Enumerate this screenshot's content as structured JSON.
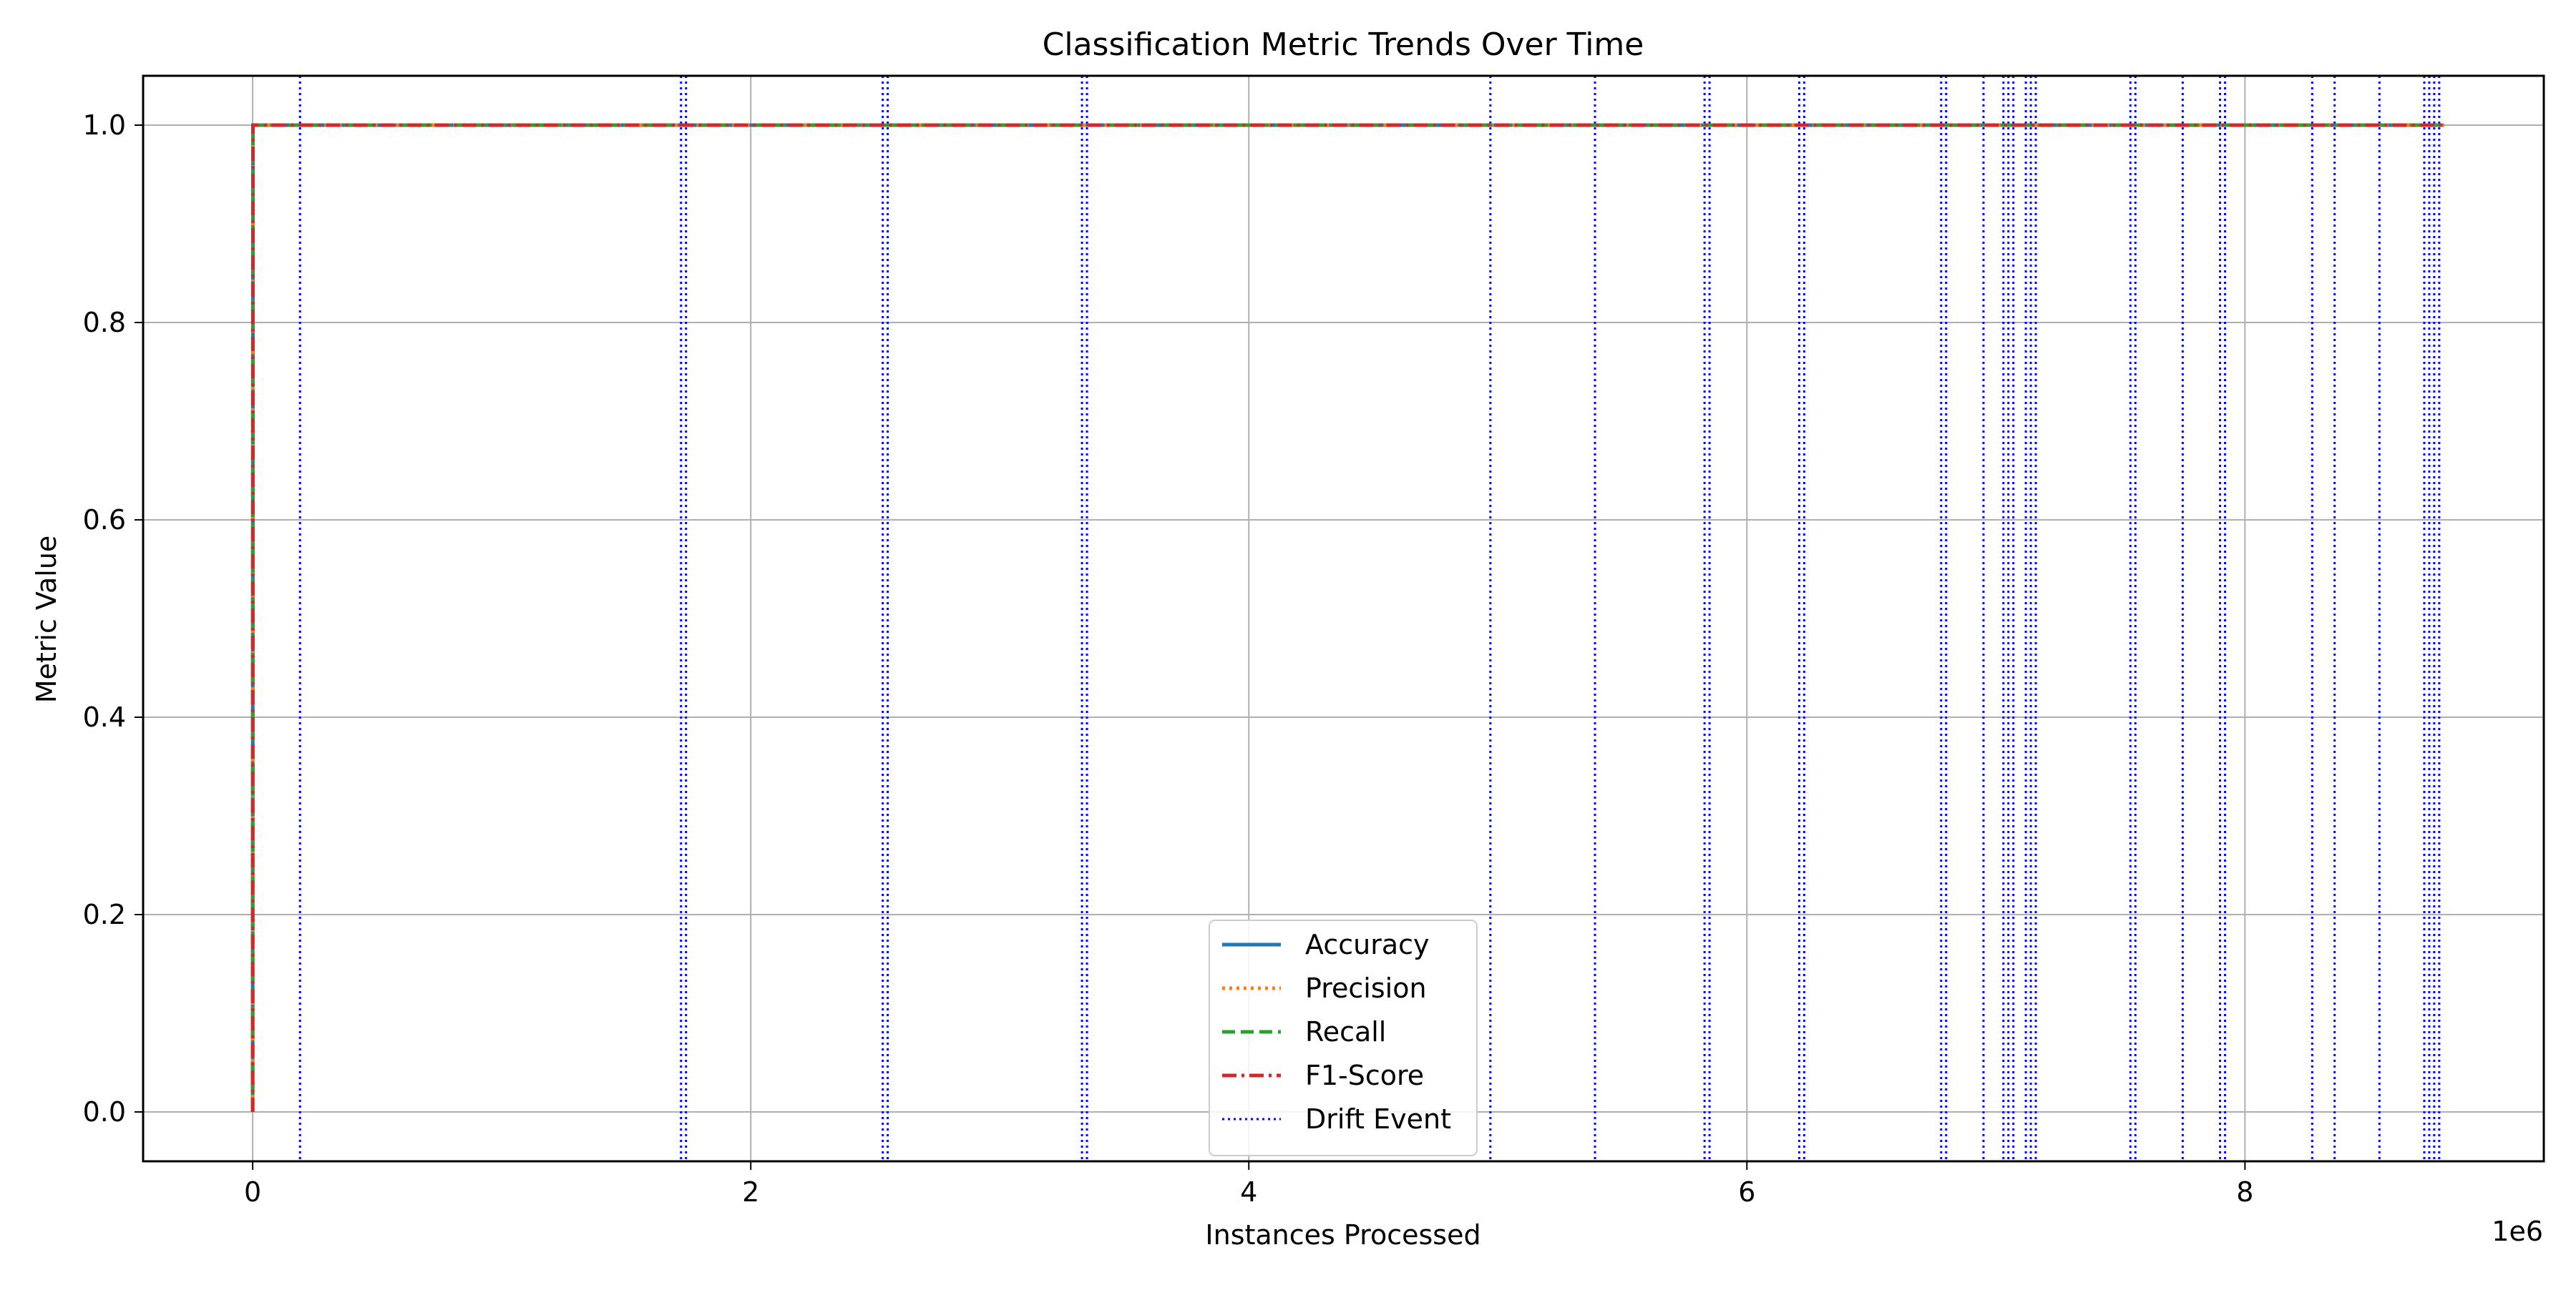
{
  "chart_data": {
    "type": "line",
    "title": "Classification Metric Trends Over Time",
    "xlabel": "Instances Processed",
    "ylabel": "Metric Value",
    "x_offset_label": "1e6",
    "x_scale": 1000000,
    "xlim": [
      -440000,
      9200000
    ],
    "ylim": [
      -0.05,
      1.05
    ],
    "xticks": [
      0,
      2000000,
      4000000,
      6000000,
      8000000
    ],
    "xtick_labels": [
      "0",
      "2",
      "4",
      "6",
      "8"
    ],
    "yticks": [
      0.0,
      0.2,
      0.4,
      0.6,
      0.8,
      1.0
    ],
    "ytick_labels": [
      "0.0",
      "0.2",
      "0.4",
      "0.6",
      "0.8",
      "1.0"
    ],
    "grid": true,
    "legend_position": "lower center",
    "series": [
      {
        "name": "Accuracy",
        "color": "#1f77b4",
        "style": "solid",
        "x": [
          0,
          1000,
          8800000
        ],
        "y": [
          0.0,
          1.0,
          1.0
        ]
      },
      {
        "name": "Precision",
        "color": "#ff7f0e",
        "style": "dotted",
        "x": [
          0,
          1000,
          8800000
        ],
        "y": [
          0.0,
          1.0,
          1.0
        ]
      },
      {
        "name": "Recall",
        "color": "#2ca02c",
        "style": "dashed",
        "x": [
          0,
          1000,
          8800000
        ],
        "y": [
          0.0,
          1.0,
          1.0
        ]
      },
      {
        "name": "F1-Score",
        "color": "#d62728",
        "style": "dashdot",
        "x": [
          0,
          1000,
          8800000
        ],
        "y": [
          0.0,
          1.0,
          1.0
        ]
      }
    ],
    "drift_events": {
      "name": "Drift Event",
      "color": "#0000ff",
      "style": "dotted",
      "x": [
        190000,
        1720000,
        1740000,
        2530000,
        2550000,
        3330000,
        3350000,
        4970000,
        5390000,
        5830000,
        5850000,
        6210000,
        6230000,
        6780000,
        6800000,
        6950000,
        7030000,
        7050000,
        7070000,
        7120000,
        7140000,
        7160000,
        7540000,
        7560000,
        7750000,
        7900000,
        7920000,
        8270000,
        8360000,
        8540000,
        8720000,
        8740000,
        8760000,
        8780000
      ]
    }
  }
}
